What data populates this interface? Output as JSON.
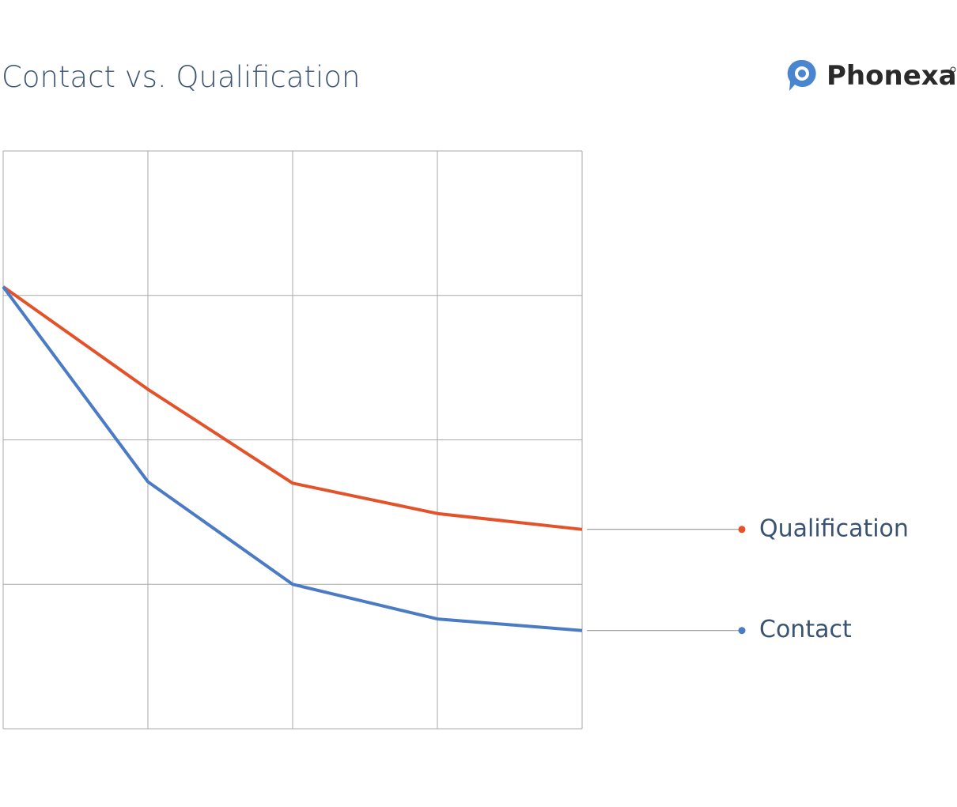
{
  "chart_data": {
    "type": "line",
    "title": "Contact vs. Qualification",
    "brand": "Phonexa",
    "x": [
      0,
      1,
      2,
      3,
      4
    ],
    "xlim": [
      0,
      4
    ],
    "xticks": [
      0,
      1,
      2,
      3,
      4
    ],
    "ylim": [
      0,
      4
    ],
    "yticks": [
      0,
      1,
      2,
      3,
      4
    ],
    "grid": true,
    "series": [
      {
        "name": "Qualification",
        "color": "#e4522a",
        "values": [
          3.06,
          2.35,
          1.7,
          1.49,
          1.38
        ]
      },
      {
        "name": "Contact",
        "color": "#4a7bc4",
        "values": [
          3.06,
          1.71,
          1.0,
          0.76,
          0.68
        ]
      }
    ]
  }
}
